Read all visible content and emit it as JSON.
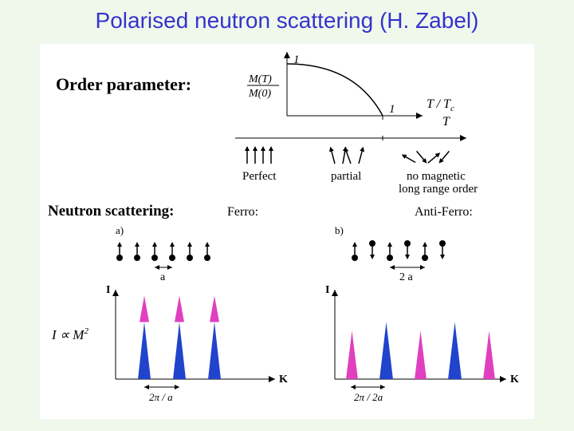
{
  "title": "Polarised neutron scattering (H. Zabel)",
  "order_param_label": "Order parameter:",
  "op_graph": {
    "y_tick": "1",
    "x_tick": "1",
    "y_label_num": "M(T)",
    "y_label_den": "M(0)",
    "x_label": "T / T",
    "x_label_sub": "c",
    "x_label2": "T"
  },
  "spin_states": {
    "s1": "Perfect",
    "s2": "partial",
    "s3_line1": "no magnetic",
    "s3_line2": "long range order"
  },
  "neutron_label": "Neutron scattering:",
  "ferro_label": "Ferro:",
  "anti_label": "Anti-Ferro:",
  "panel_a": "a)",
  "panel_b": "b)",
  "spacing_a": "a",
  "spacing_2a": "2 a",
  "intensity_formula": "I ∝ M",
  "intensity_exp": "2",
  "axis_I": "I",
  "axis_K": "K",
  "tick_ferro": "2π / a",
  "tick_anti": "2π / 2a",
  "colors": {
    "peak_blue": "#2244cc",
    "peak_magenta": "#e040c0",
    "black": "#000000"
  },
  "ferro_peaks": {
    "positions": [
      0.18,
      0.4,
      0.62
    ],
    "baseline": 1.0,
    "blue_h": 0.65,
    "mag_h": 0.95,
    "width": 0.06
  },
  "anti_peaks": {
    "blue_positions": [
      0.3,
      0.7
    ],
    "mag_positions": [
      0.1,
      0.5,
      0.9
    ],
    "baseline": 1.0,
    "blue_h": 0.65,
    "mag_h": 0.55,
    "width": 0.06
  }
}
